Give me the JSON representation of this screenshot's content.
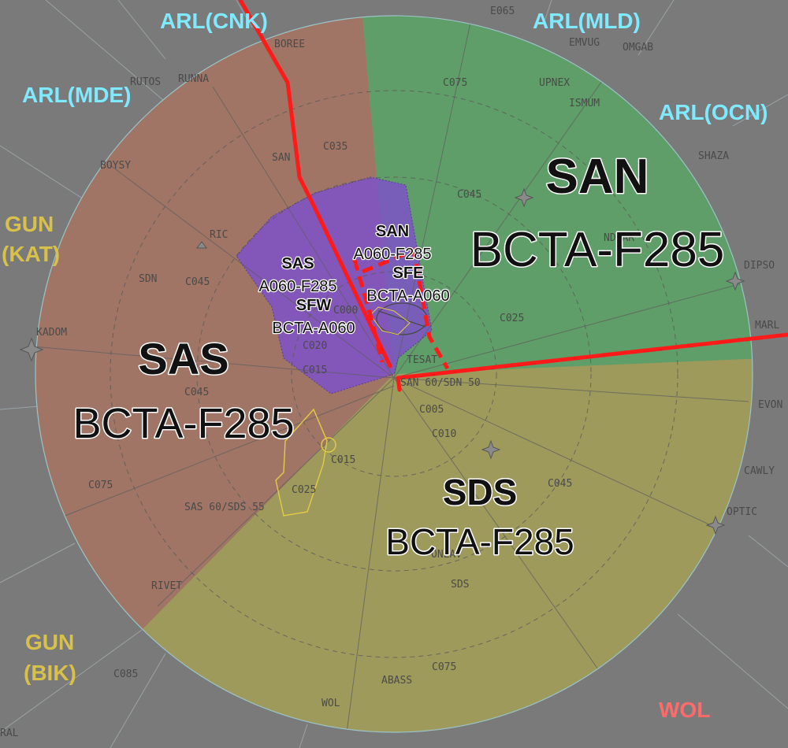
{
  "colors": {
    "background": "#7a7a7a",
    "san": "#5f9e68",
    "sas": "#a07565",
    "sds": "#9e9a5c",
    "sub_sector": "#7d52c8",
    "boundary": "#ff1a1a",
    "arl_label": "#7fe9ff",
    "gun_label": "#d8c14a",
    "wol_label": "#ff6b6b",
    "map_text": "#4a4a4a"
  },
  "sectors": {
    "san": {
      "name": "SAN",
      "level": "BCTA-F285"
    },
    "sas": {
      "name": "SAS",
      "level": "BCTA-F285"
    },
    "sds": {
      "name": "SDS",
      "level": "BCTA-F285"
    }
  },
  "subsectors": {
    "san_inner": {
      "name": "SAN",
      "level": "A060-F285"
    },
    "sas_inner": {
      "name": "SAS",
      "level": "A060-F285"
    },
    "sfe": {
      "name": "SFE",
      "level": "BCTA-A060"
    },
    "sfw": {
      "name": "SFW",
      "level": "BCTA-A060"
    }
  },
  "adjacent": {
    "arl_cnk": "ARL(CNK)",
    "arl_mld": "ARL(MLD)",
    "arl_mde": "ARL(MDE)",
    "arl_ocn": "ARL(OCN)",
    "gun_kat_1": "GUN",
    "gun_kat_2": "(KAT)",
    "gun_bik_1": "GUN",
    "gun_bik_2": "(BIK)",
    "wol": "WOL"
  },
  "map_labels": {
    "e065": "E065",
    "boree": "BOREE",
    "emvug": "EMVUG",
    "omgab": "OMGAB",
    "rutos": "RUTOS",
    "runna": "RUNNA",
    "upnex": "UPNEX",
    "ismum": "ISMUM",
    "c075_n": "C075",
    "shaza": "SHAZA",
    "boysy": "BOYSY",
    "c035": "C035",
    "san_nav": "SAN",
    "c045_ne": "C045",
    "ric": "RIC",
    "sdn": "SDN",
    "c045_w": "C045",
    "ndbar": "NDBAR",
    "dipso": "DIPSO",
    "kadom": "KADOM",
    "c025_e": "C025",
    "marl": "MARL",
    "c000": "C000",
    "c020": "C020",
    "tesat": "TESAT",
    "c015_w": "C015",
    "san_sdn": "SAN 60/SDN 50",
    "c045_sw": "C045",
    "c005": "C005",
    "evon": "EVON",
    "c010": "C010",
    "c015_s": "C015",
    "c045_se": "C045",
    "cawly": "CAWLY",
    "c075_w": "C075",
    "c025_s": "C025",
    "sas_sds": "SAS 60/SDS 55",
    "optic": "OPTIC",
    "onlav": "ONLAV",
    "sds_nav": "SDS",
    "rivet": "RIVET",
    "c075_s": "C075",
    "c085": "C085",
    "abass": "ABASS",
    "wol_nav": "WOL",
    "ral": "RAL"
  }
}
